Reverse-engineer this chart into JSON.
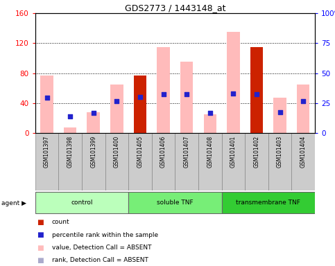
{
  "title": "GDS2773 / 1443148_at",
  "samples": [
    "GSM101397",
    "GSM101398",
    "GSM101399",
    "GSM101400",
    "GSM101405",
    "GSM101406",
    "GSM101407",
    "GSM101408",
    "GSM101401",
    "GSM101402",
    "GSM101403",
    "GSM101404"
  ],
  "pink_values": [
    77,
    7,
    28,
    65,
    0,
    115,
    95,
    25,
    135,
    0,
    47,
    65
  ],
  "red_values": [
    0,
    0,
    0,
    0,
    77,
    0,
    0,
    0,
    0,
    115,
    0,
    0
  ],
  "blue_squares": [
    47,
    22,
    27,
    43,
    48,
    52,
    52,
    27,
    53,
    52,
    28,
    43
  ],
  "groups": [
    {
      "label": "control",
      "start": 0,
      "end": 3,
      "color": "#bbffbb"
    },
    {
      "label": "soluble TNF",
      "start": 4,
      "end": 7,
      "color": "#77ee77"
    },
    {
      "label": "transmembrane TNF",
      "start": 8,
      "end": 11,
      "color": "#33cc33"
    }
  ],
  "ylim_left": [
    0,
    160
  ],
  "ylim_right": [
    0,
    100
  ],
  "yticks_left": [
    0,
    40,
    80,
    120,
    160
  ],
  "yticks_right": [
    0,
    25,
    50,
    75,
    100
  ],
  "ytick_labels_left": [
    "0",
    "40",
    "80",
    "120",
    "160"
  ],
  "ytick_labels_right": [
    "0",
    "25",
    "50",
    "75",
    "100%"
  ],
  "pink_color": "#ffbbbb",
  "red_color": "#cc2200",
  "blue_color": "#2222cc",
  "lavender_color": "#aaaacc",
  "col_bg_color": "#cccccc",
  "plot_bg_color": "#ffffff",
  "bar_width": 0.55,
  "legend_items": [
    {
      "color": "#cc2200",
      "label": "count"
    },
    {
      "color": "#2222cc",
      "label": "percentile rank within the sample"
    },
    {
      "color": "#ffbbbb",
      "label": "value, Detection Call = ABSENT"
    },
    {
      "color": "#aaaacc",
      "label": "rank, Detection Call = ABSENT"
    }
  ]
}
